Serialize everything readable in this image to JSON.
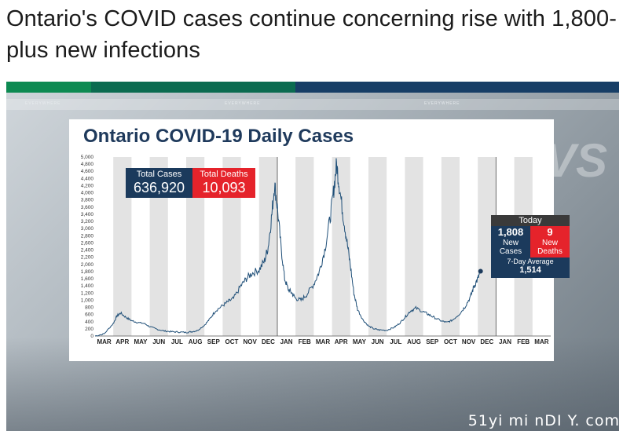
{
  "article": {
    "headline": "Ontario's COVID cases continue concerning rise with 1,800-plus new infections"
  },
  "broadcast": {
    "watermark_texts": [
      "EVERYWHERE",
      "EVERYWHERE",
      "EVERYWHERE"
    ],
    "bg_mark": "VS",
    "corner_watermark": "51yi mi nDI Y. com"
  },
  "colors": {
    "navy": "#1b3a5c",
    "red": "#e5232b",
    "line": "#1f4f78",
    "stripe_green": "#0d8a52",
    "stripe_dark_green": "#0b6b50",
    "stripe_navy": "#173e66"
  },
  "totals": {
    "cases_label": "Total Cases",
    "cases_value": "636,920",
    "deaths_label": "Total Deaths",
    "deaths_value": "10,093"
  },
  "today": {
    "header": "Today",
    "new_cases_value": "1,808",
    "new_cases_label_1": "New",
    "new_cases_label_2": "Cases",
    "new_deaths_value": "9",
    "new_deaths_label_1": "New",
    "new_deaths_label_2": "Deaths",
    "avg_label": "7-Day Average",
    "avg_value": "1,514"
  },
  "chart_data": {
    "type": "line",
    "title": "Ontario COVID-19 Daily Cases",
    "ylim": [
      0,
      5000
    ],
    "yticks": [
      "0",
      "200",
      "400",
      "600",
      "800",
      "1,000",
      "1,200",
      "1,400",
      "1,600",
      "1,800",
      "2,000",
      "2,200",
      "2,400",
      "2,600",
      "2,800",
      "3,000",
      "3,200",
      "3,400",
      "3,600",
      "3,800",
      "4,000",
      "4,200",
      "4,400",
      "4,600",
      "4,800",
      "5,000"
    ],
    "months": [
      "MAR",
      "APR",
      "MAY",
      "JUN",
      "JUL",
      "AUG",
      "SEP",
      "OCT",
      "NOV",
      "DEC",
      "JAN",
      "FEB",
      "MAR",
      "APR",
      "MAY",
      "JUN",
      "JUL",
      "AUG",
      "SEP",
      "OCT",
      "NOV",
      "DEC",
      "JAN",
      "FEB",
      "MAR"
    ],
    "grid": "alternating month bands",
    "series": [
      {
        "values": [
          [
            0,
            0
          ],
          [
            0.5,
            60
          ],
          [
            1,
            350
          ],
          [
            1.2,
            560
          ],
          [
            1.4,
            640
          ],
          [
            1.7,
            520
          ],
          [
            2,
            430
          ],
          [
            2.3,
            380
          ],
          [
            2.7,
            350
          ],
          [
            3,
            260
          ],
          [
            3.4,
            190
          ],
          [
            3.8,
            140
          ],
          [
            4.2,
            120
          ],
          [
            4.6,
            110
          ],
          [
            5,
            100
          ],
          [
            5.3,
            120
          ],
          [
            5.6,
            150
          ],
          [
            6,
            300
          ],
          [
            6.3,
            480
          ],
          [
            6.6,
            700
          ],
          [
            7,
            850
          ],
          [
            7.3,
            960
          ],
          [
            7.6,
            1050
          ],
          [
            8,
            1400
          ],
          [
            8.3,
            1600
          ],
          [
            8.6,
            1750
          ],
          [
            9,
            1850
          ],
          [
            9.3,
            2100
          ],
          [
            9.5,
            2500
          ],
          [
            9.7,
            3400
          ],
          [
            9.85,
            4250
          ],
          [
            10,
            3600
          ],
          [
            10.2,
            2500
          ],
          [
            10.4,
            1600
          ],
          [
            10.6,
            1300
          ],
          [
            10.8,
            1200
          ],
          [
            11,
            1050
          ],
          [
            11.3,
            1000
          ],
          [
            11.6,
            1150
          ],
          [
            12,
            1450
          ],
          [
            12.3,
            1800
          ],
          [
            12.6,
            2400
          ],
          [
            12.9,
            3300
          ],
          [
            13.1,
            4100
          ],
          [
            13.25,
            4800
          ],
          [
            13.4,
            4200
          ],
          [
            13.6,
            3400
          ],
          [
            13.8,
            2700
          ],
          [
            14,
            2000
          ],
          [
            14.2,
            1200
          ],
          [
            14.4,
            750
          ],
          [
            14.7,
            450
          ],
          [
            15,
            280
          ],
          [
            15.3,
            200
          ],
          [
            15.6,
            170
          ],
          [
            16,
            160
          ],
          [
            16.4,
            240
          ],
          [
            16.7,
            350
          ],
          [
            17,
            520
          ],
          [
            17.3,
            700
          ],
          [
            17.6,
            780
          ],
          [
            18,
            680
          ],
          [
            18.3,
            600
          ],
          [
            18.6,
            520
          ],
          [
            19,
            420
          ],
          [
            19.3,
            380
          ],
          [
            19.6,
            440
          ],
          [
            20,
            620
          ],
          [
            20.3,
            820
          ],
          [
            20.6,
            1100
          ],
          [
            20.8,
            1400
          ],
          [
            21,
            1600
          ],
          [
            21.15,
            1808
          ]
        ]
      }
    ],
    "last_point": [
      21.15,
      1808
    ]
  }
}
